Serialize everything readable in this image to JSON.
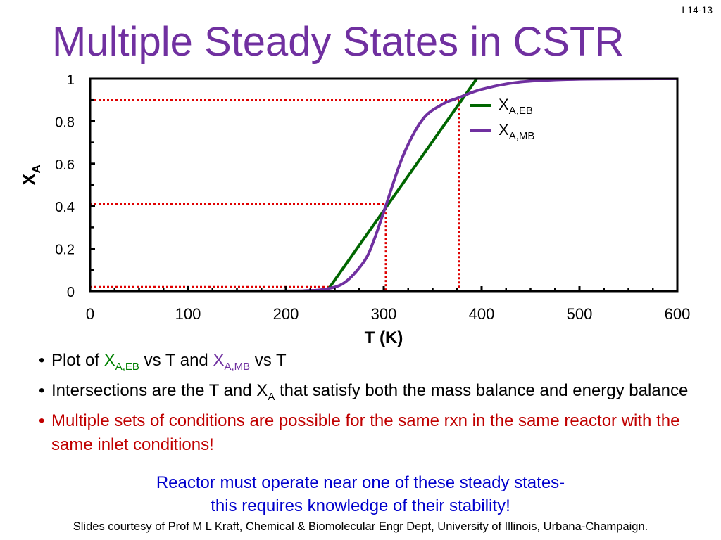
{
  "slide_number": "L14-13",
  "title": "Multiple Steady States in CSTR",
  "colors": {
    "title": "#7030A0",
    "eb_line": "#006600",
    "mb_curve": "#7030A0",
    "guide_lines": "#E00000",
    "red_text": "#C00000",
    "blue_text": "#0000CC"
  },
  "chart_data": {
    "type": "line",
    "xlabel": "T (K)",
    "ylabel": "X",
    "ylabel_sub": "A",
    "xlim": [
      0,
      600
    ],
    "ylim": [
      0,
      1
    ],
    "x_ticks": [
      {
        "value": 0,
        "label": "0"
      },
      {
        "value": 100,
        "label": "100"
      },
      {
        "value": 200,
        "label": "200"
      },
      {
        "value": 300,
        "label": "300"
      },
      {
        "value": 400,
        "label": "400"
      },
      {
        "value": 500,
        "label": "500"
      },
      {
        "value": 600,
        "label": "600"
      }
    ],
    "y_ticks": [
      {
        "value": 0,
        "label": "0"
      },
      {
        "value": 0.2,
        "label": "0.2"
      },
      {
        "value": 0.4,
        "label": "0.4"
      },
      {
        "value": 0.6,
        "label": "0.6"
      },
      {
        "value": 0.8,
        "label": "0.8"
      },
      {
        "value": 1,
        "label": "1"
      }
    ],
    "grid": false,
    "legend_position": "top-right",
    "series": [
      {
        "name": "X",
        "name_sub": "A,EB",
        "color": "#006600",
        "points": [
          [
            242,
            0.0
          ],
          [
            395,
            1.0
          ]
        ]
      },
      {
        "name": "X",
        "name_sub": "A,MB",
        "color": "#7030A0",
        "points": [
          [
            50,
            0.0
          ],
          [
            200,
            0.0005
          ],
          [
            220,
            0.002
          ],
          [
            240,
            0.009
          ],
          [
            260,
            0.04
          ],
          [
            280,
            0.14
          ],
          [
            290,
            0.24
          ],
          [
            302,
            0.4
          ],
          [
            320,
            0.64
          ],
          [
            340,
            0.81
          ],
          [
            360,
            0.88
          ],
          [
            376,
            0.91
          ],
          [
            400,
            0.95
          ],
          [
            440,
            0.985
          ],
          [
            500,
            0.998
          ],
          [
            600,
            1.0
          ]
        ]
      }
    ],
    "steady_states": [
      {
        "x": 245,
        "y": 0.02
      },
      {
        "x": 302,
        "y": 0.41
      },
      {
        "x": 377,
        "y": 0.9
      }
    ]
  },
  "bullets": [
    {
      "prefix": "Plot of ",
      "x1": "X",
      "x1_sub": "A,EB",
      "mid": " vs T and ",
      "x2": "X",
      "x2_sub": "A,MB",
      "suffix": " vs T"
    },
    {
      "text_a": "Intersections are the T and X",
      "text_sub": "A",
      "text_b": " that satisfy both the mass balance and energy balance"
    },
    {
      "text": "Multiple sets of conditions are possible for the same rxn in the same reactor with the same inlet conditions!"
    }
  ],
  "conclusion_lines": [
    "Reactor must operate near one of these steady states-",
    "this requires knowledge of their stability!"
  ],
  "credit": "Slides courtesy of Prof M L Kraft, Chemical & Biomolecular Engr Dept, University of Illinois, Urbana-Champaign."
}
